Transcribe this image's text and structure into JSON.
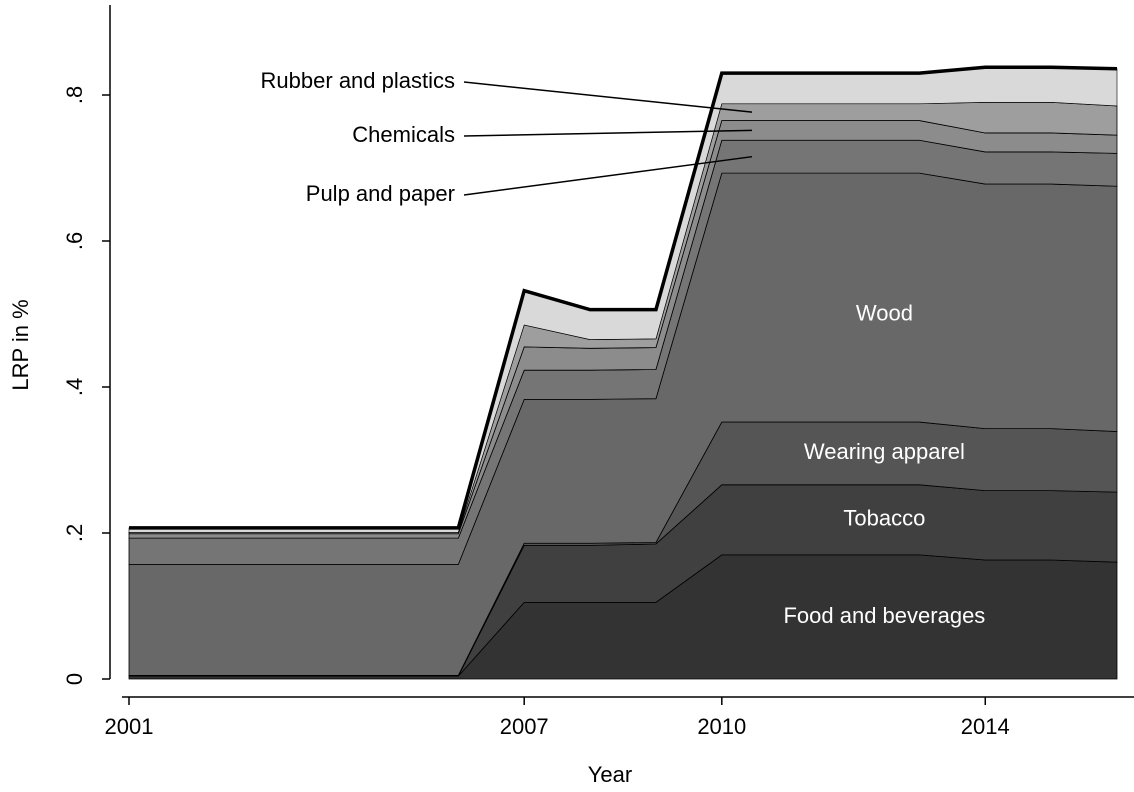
{
  "chart_data": {
    "type": "stacked_area",
    "x_label": "Year",
    "y_label": "LRP in %",
    "x": [
      2001,
      2002,
      2003,
      2004,
      2005,
      2006,
      2007,
      2008,
      2009,
      2010,
      2011,
      2012,
      2013,
      2014,
      2015,
      2016
    ],
    "xlim": [
      2001,
      2016
    ],
    "xticks": [
      2001,
      2007,
      2010,
      2014
    ],
    "ylim": [
      0,
      0.92
    ],
    "yticks": [
      0,
      {
        "value": 0.2,
        "label": ".2"
      },
      {
        "value": 0.4,
        "label": ".4"
      },
      {
        "value": 0.6,
        "label": ".6"
      },
      {
        "value": 0.8,
        "label": ".8"
      }
    ],
    "series": [
      {
        "name": "Food and beverages",
        "color": "#333333",
        "label_inside": true,
        "values": [
          0.004,
          0.004,
          0.004,
          0.004,
          0.004,
          0.004,
          0.105,
          0.105,
          0.105,
          0.17,
          0.17,
          0.17,
          0.17,
          0.163,
          0.163,
          0.16
        ]
      },
      {
        "name": "Tobacco",
        "color": "#404040",
        "label_inside": true,
        "values": [
          0,
          0,
          0,
          0,
          0,
          0,
          0.078,
          0.078,
          0.08,
          0.096,
          0.096,
          0.096,
          0.096,
          0.095,
          0.095,
          0.096
        ]
      },
      {
        "name": "Wearing apparel",
        "color": "#555555",
        "label_inside": true,
        "values": [
          0.001,
          0.001,
          0.001,
          0.001,
          0.001,
          0.001,
          0.003,
          0.003,
          0.002,
          0.086,
          0.086,
          0.086,
          0.086,
          0.085,
          0.085,
          0.083
        ]
      },
      {
        "name": "Wood",
        "color": "#686868",
        "label_inside": true,
        "values": [
          0.152,
          0.152,
          0.152,
          0.152,
          0.152,
          0.152,
          0.197,
          0.197,
          0.197,
          0.341,
          0.341,
          0.341,
          0.341,
          0.335,
          0.335,
          0.336
        ]
      },
      {
        "name": "Pulp and paper",
        "color": "#757575",
        "label_inside": false,
        "values": [
          0.036,
          0.036,
          0.036,
          0.036,
          0.036,
          0.036,
          0.04,
          0.04,
          0.04,
          0.045,
          0.045,
          0.045,
          0.045,
          0.044,
          0.044,
          0.045
        ]
      },
      {
        "name": "Chemicals",
        "color": "#8c8c8c",
        "label_inside": false,
        "values": [
          0.006,
          0.006,
          0.006,
          0.006,
          0.006,
          0.006,
          0.032,
          0.03,
          0.03,
          0.027,
          0.027,
          0.027,
          0.027,
          0.026,
          0.026,
          0.025
        ]
      },
      {
        "name": "Rubber and plastics",
        "color": "#9e9e9e",
        "label_inside": false,
        "values": [
          0.002,
          0.002,
          0.002,
          0.002,
          0.002,
          0.002,
          0.03,
          0.012,
          0.012,
          0.023,
          0.023,
          0.023,
          0.023,
          0.042,
          0.042,
          0.04
        ]
      },
      {
        "color": "#d9d9d9",
        "values": [
          0.006,
          0.006,
          0.006,
          0.006,
          0.006,
          0.006,
          0.047,
          0.041,
          0.04,
          0.042,
          0.042,
          0.042,
          0.042,
          0.048,
          0.048,
          0.051
        ]
      }
    ]
  }
}
